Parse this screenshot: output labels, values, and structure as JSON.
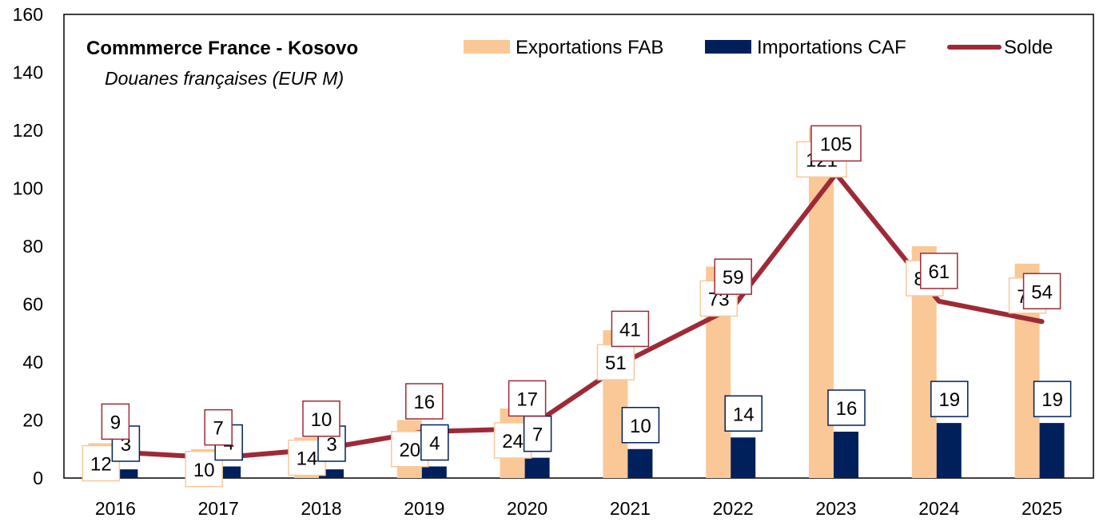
{
  "chart_data": {
    "type": "bar",
    "title": "Commmerce France - Kosovo",
    "subtitle": "Douanes françaises (EUR M)",
    "categories": [
      "2016",
      "2017",
      "2018",
      "2019",
      "2020",
      "2021",
      "2022",
      "2023",
      "2024",
      "2025"
    ],
    "ylim": [
      0,
      160
    ],
    "yticks": [
      0,
      20,
      40,
      60,
      80,
      100,
      120,
      140,
      160
    ],
    "grid": false,
    "legend_position": "top",
    "series": [
      {
        "name": "Exportations FAB",
        "type": "bar",
        "color": "#FAC896",
        "label_border": "#F7C99A",
        "values": [
          12,
          10,
          14,
          20,
          24,
          51,
          73,
          121,
          80,
          74
        ]
      },
      {
        "name": "Importations CAF",
        "type": "bar",
        "color": "#00205B",
        "label_border": "#00205B",
        "values": [
          3,
          4,
          3,
          4,
          7,
          10,
          14,
          16,
          19,
          19
        ]
      },
      {
        "name": "Solde",
        "type": "line",
        "color": "#9E2A37",
        "label_border": "#9E2A37",
        "values": [
          9,
          7,
          10,
          16,
          17,
          41,
          59,
          105,
          61,
          54
        ]
      }
    ]
  }
}
